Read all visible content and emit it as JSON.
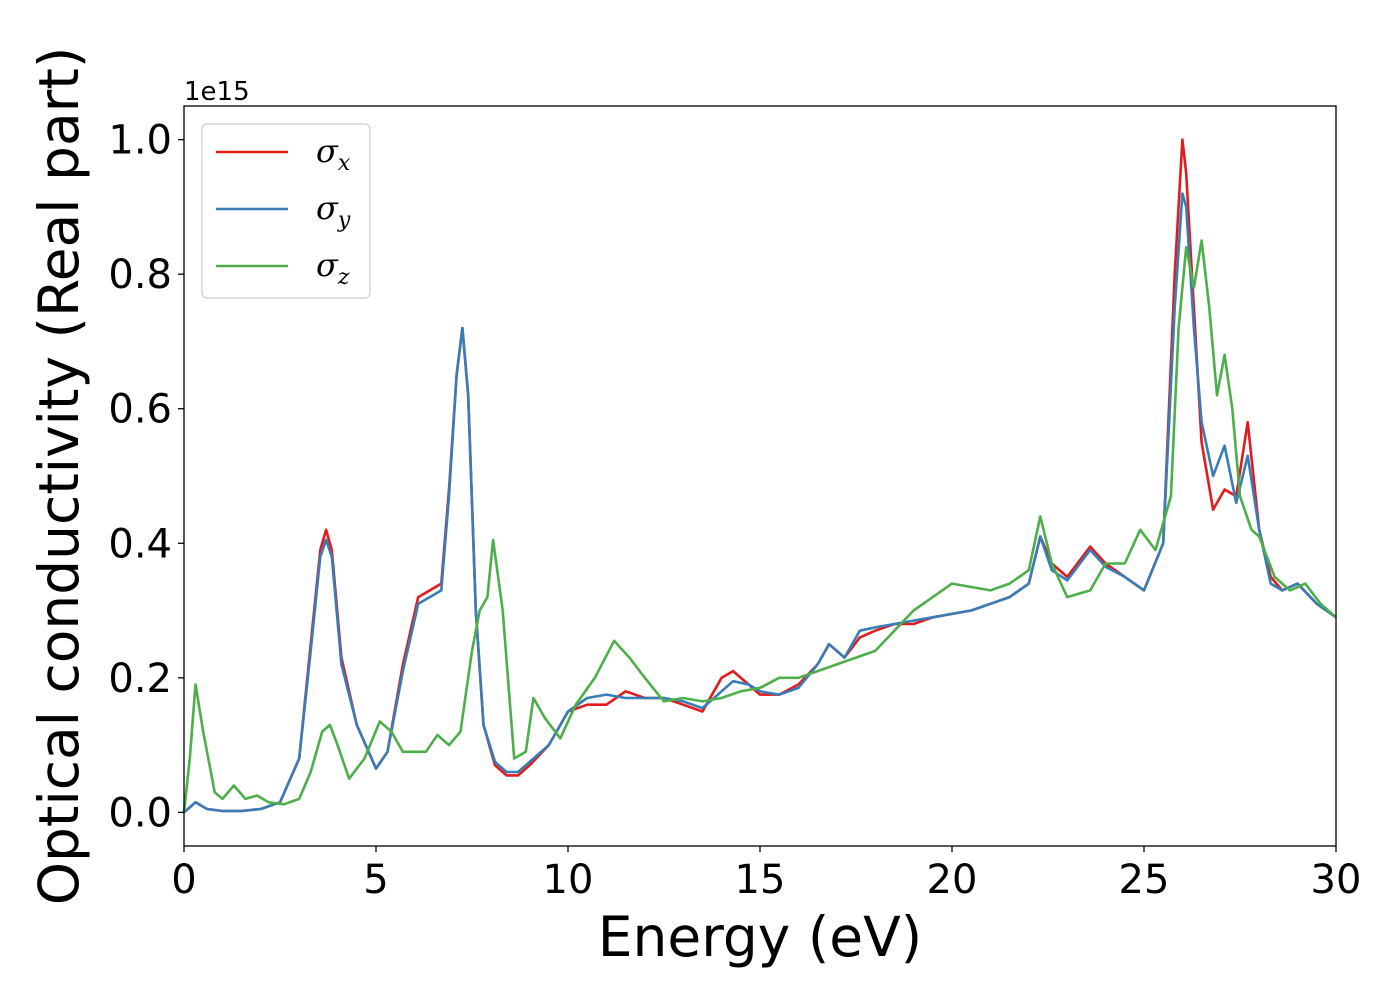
{
  "chart_data": {
    "type": "line",
    "title": "",
    "xlabel": "Energy (eV)",
    "ylabel": "Optical conductivity (Real part)",
    "y_offset_text": "1e15",
    "xlim": [
      0,
      30
    ],
    "ylim": [
      -0.05,
      1.05
    ],
    "xticks": [
      0,
      5,
      10,
      15,
      20,
      25,
      30
    ],
    "xtick_labels": [
      "0",
      "5",
      "10",
      "15",
      "20",
      "25",
      "30"
    ],
    "yticks": [
      0.0,
      0.2,
      0.4,
      0.6,
      0.8,
      1.0
    ],
    "ytick_labels": [
      "0.0",
      "0.2",
      "0.4",
      "0.6",
      "0.8",
      "1.0"
    ],
    "grid": false,
    "legend_position": "top-left",
    "series": [
      {
        "name": "σx",
        "legend_base": "σ",
        "legend_sub": "x",
        "color": "#e41a1c",
        "x": [
          0,
          0.3,
          0.6,
          1,
          1.5,
          2,
          2.5,
          3,
          3.3,
          3.55,
          3.7,
          3.85,
          4.1,
          4.5,
          5,
          5.3,
          5.7,
          6.1,
          6.4,
          6.7,
          6.9,
          7.1,
          7.25,
          7.4,
          7.6,
          7.8,
          8.1,
          8.4,
          8.7,
          9,
          9.5,
          10,
          10.5,
          11,
          11.5,
          12,
          12.5,
          13,
          13.5,
          14,
          14.3,
          14.7,
          15,
          15.5,
          16,
          16.5,
          16.8,
          17.2,
          17.6,
          18,
          18.5,
          19,
          19.5,
          20,
          20.5,
          21,
          21.5,
          22,
          22.3,
          22.6,
          23,
          23.6,
          24,
          24.5,
          25,
          25.5,
          25.8,
          26,
          26.1,
          26.3,
          26.5,
          26.8,
          27.1,
          27.4,
          27.7,
          28,
          28.3,
          28.6,
          29,
          29.5,
          30
        ],
        "y": [
          0.0,
          0.015,
          0.005,
          0.002,
          0.002,
          0.005,
          0.015,
          0.08,
          0.25,
          0.39,
          0.42,
          0.39,
          0.23,
          0.13,
          0.065,
          0.09,
          0.22,
          0.32,
          0.33,
          0.34,
          0.48,
          0.65,
          0.72,
          0.62,
          0.3,
          0.13,
          0.07,
          0.055,
          0.055,
          0.07,
          0.1,
          0.15,
          0.16,
          0.16,
          0.18,
          0.17,
          0.17,
          0.16,
          0.15,
          0.2,
          0.21,
          0.19,
          0.175,
          0.175,
          0.19,
          0.22,
          0.25,
          0.23,
          0.26,
          0.27,
          0.28,
          0.28,
          0.29,
          0.295,
          0.3,
          0.31,
          0.32,
          0.34,
          0.41,
          0.37,
          0.35,
          0.395,
          0.37,
          0.35,
          0.33,
          0.4,
          0.8,
          1.0,
          0.95,
          0.75,
          0.55,
          0.45,
          0.48,
          0.47,
          0.58,
          0.42,
          0.35,
          0.33,
          0.34,
          0.31,
          0.29
        ]
      },
      {
        "name": "σy",
        "legend_base": "σ",
        "legend_sub": "y",
        "color": "#377eb8",
        "x": [
          0,
          0.3,
          0.6,
          1,
          1.5,
          2,
          2.5,
          3,
          3.3,
          3.55,
          3.7,
          3.85,
          4.1,
          4.5,
          5,
          5.3,
          5.7,
          6.1,
          6.4,
          6.7,
          6.9,
          7.1,
          7.25,
          7.4,
          7.6,
          7.8,
          8.1,
          8.4,
          8.7,
          9,
          9.5,
          10,
          10.5,
          11,
          11.5,
          12,
          12.5,
          13,
          13.5,
          14,
          14.3,
          14.7,
          15,
          15.5,
          16,
          16.5,
          16.8,
          17.2,
          17.6,
          18,
          18.5,
          19,
          19.5,
          20,
          20.5,
          21,
          21.5,
          22,
          22.3,
          22.6,
          23,
          23.6,
          24,
          24.5,
          25,
          25.5,
          25.8,
          26,
          26.1,
          26.3,
          26.5,
          26.8,
          27.1,
          27.4,
          27.7,
          28,
          28.3,
          28.6,
          29,
          29.5,
          30
        ],
        "y": [
          0.0,
          0.015,
          0.005,
          0.002,
          0.002,
          0.005,
          0.015,
          0.08,
          0.24,
          0.38,
          0.405,
          0.38,
          0.22,
          0.13,
          0.065,
          0.09,
          0.21,
          0.31,
          0.32,
          0.33,
          0.47,
          0.65,
          0.72,
          0.62,
          0.3,
          0.13,
          0.075,
          0.06,
          0.06,
          0.075,
          0.1,
          0.15,
          0.17,
          0.175,
          0.17,
          0.17,
          0.17,
          0.165,
          0.155,
          0.18,
          0.195,
          0.19,
          0.18,
          0.175,
          0.185,
          0.22,
          0.25,
          0.23,
          0.27,
          0.275,
          0.28,
          0.285,
          0.29,
          0.295,
          0.3,
          0.31,
          0.32,
          0.34,
          0.41,
          0.36,
          0.345,
          0.39,
          0.365,
          0.35,
          0.33,
          0.4,
          0.75,
          0.92,
          0.9,
          0.72,
          0.58,
          0.5,
          0.545,
          0.46,
          0.53,
          0.42,
          0.34,
          0.33,
          0.34,
          0.31,
          0.29
        ]
      },
      {
        "name": "σz",
        "legend_base": "σ",
        "legend_sub": "z",
        "color": "#4daf4a",
        "x": [
          0,
          0.15,
          0.3,
          0.5,
          0.8,
          1,
          1.3,
          1.6,
          1.9,
          2.2,
          2.6,
          3,
          3.3,
          3.6,
          3.8,
          4,
          4.3,
          4.7,
          5.1,
          5.4,
          5.7,
          6,
          6.3,
          6.6,
          6.9,
          7.2,
          7.5,
          7.7,
          7.9,
          8.05,
          8.3,
          8.6,
          8.9,
          9.1,
          9.4,
          9.8,
          10.2,
          10.7,
          11.2,
          11.6,
          12,
          12.5,
          13,
          13.5,
          14,
          14.5,
          15,
          15.5,
          16,
          16.5,
          17,
          17.5,
          18,
          18.5,
          19,
          19.5,
          20,
          20.5,
          21,
          21.5,
          22,
          22.3,
          22.6,
          23,
          23.6,
          24,
          24.5,
          24.9,
          25.3,
          25.7,
          25.9,
          26.1,
          26.3,
          26.5,
          26.7,
          26.9,
          27.1,
          27.3,
          27.5,
          27.8,
          28,
          28.4,
          28.8,
          29.2,
          29.6,
          30
        ],
        "y": [
          0.0,
          0.08,
          0.19,
          0.12,
          0.03,
          0.02,
          0.04,
          0.02,
          0.025,
          0.015,
          0.012,
          0.02,
          0.06,
          0.12,
          0.13,
          0.1,
          0.05,
          0.08,
          0.135,
          0.12,
          0.09,
          0.09,
          0.09,
          0.115,
          0.1,
          0.12,
          0.24,
          0.3,
          0.32,
          0.405,
          0.3,
          0.08,
          0.09,
          0.17,
          0.14,
          0.11,
          0.16,
          0.2,
          0.255,
          0.23,
          0.2,
          0.165,
          0.17,
          0.165,
          0.17,
          0.18,
          0.185,
          0.2,
          0.2,
          0.21,
          0.22,
          0.23,
          0.24,
          0.27,
          0.3,
          0.32,
          0.34,
          0.335,
          0.33,
          0.34,
          0.36,
          0.44,
          0.37,
          0.32,
          0.33,
          0.37,
          0.37,
          0.42,
          0.39,
          0.47,
          0.72,
          0.84,
          0.78,
          0.85,
          0.75,
          0.62,
          0.68,
          0.6,
          0.47,
          0.42,
          0.41,
          0.35,
          0.33,
          0.34,
          0.31,
          0.29
        ]
      }
    ]
  }
}
